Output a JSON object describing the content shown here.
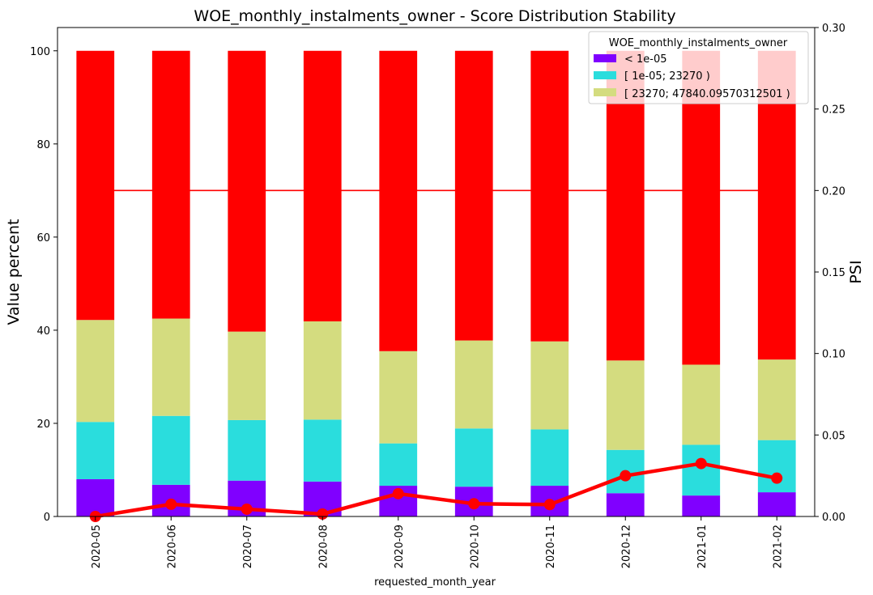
{
  "chart_data": {
    "type": "bar",
    "title": "WOE_monthly_instalments_owner  - Score Distribution Stability",
    "xlabel": "requested_month_year",
    "ylabel": "Value percent",
    "y2label": "PSI",
    "categories": [
      "2020-05",
      "2020-06",
      "2020-07",
      "2020-08",
      "2020-09",
      "2020-10",
      "2020-11",
      "2020-12",
      "2021-01",
      "2021-02"
    ],
    "stacked": true,
    "ylim": [
      0,
      105
    ],
    "yticks": [
      0,
      20,
      40,
      60,
      80,
      100
    ],
    "y2lim": [
      0,
      0.3
    ],
    "y2ticks": [
      "0.00",
      "0.05",
      "0.10",
      "0.15",
      "0.20",
      "0.25",
      "0.30"
    ],
    "legend": {
      "title": "WOE_monthly_instalments_owner",
      "placement": "top-right",
      "entries": [
        "< 1e-05",
        "[ 1e-05; 23270 )",
        "[ 23270; 47840.09570312501 )"
      ]
    },
    "series": [
      {
        "name": "< 1e-05",
        "color": "#8000ff",
        "values": [
          8.0,
          6.8,
          7.7,
          7.5,
          6.6,
          6.4,
          6.6,
          5.0,
          4.5,
          5.2
        ]
      },
      {
        "name": "[ 1e-05; 23270 )",
        "color": "#2adddd",
        "values": [
          12.3,
          14.8,
          13.0,
          13.3,
          9.1,
          12.5,
          12.1,
          9.3,
          10.9,
          11.2
        ]
      },
      {
        "name": "[ 23270; 47840.09570312501 )",
        "color": "#d4dc7f",
        "values": [
          21.9,
          20.9,
          19.0,
          21.1,
          19.8,
          18.9,
          18.9,
          19.2,
          17.2,
          17.3
        ]
      },
      {
        "color": "#ff0000",
        "values": [
          57.8,
          57.5,
          60.3,
          58.1,
          64.5,
          62.2,
          62.4,
          66.5,
          67.4,
          66.3
        ]
      }
    ],
    "psi": {
      "color": "#ff0000",
      "values": [
        0.0,
        0.0075,
        0.0045,
        0.0015,
        0.014,
        0.0078,
        0.0073,
        0.025,
        0.0325,
        0.0235
      ]
    },
    "threshold": {
      "value": 0.2,
      "color": "#ff0000"
    }
  }
}
